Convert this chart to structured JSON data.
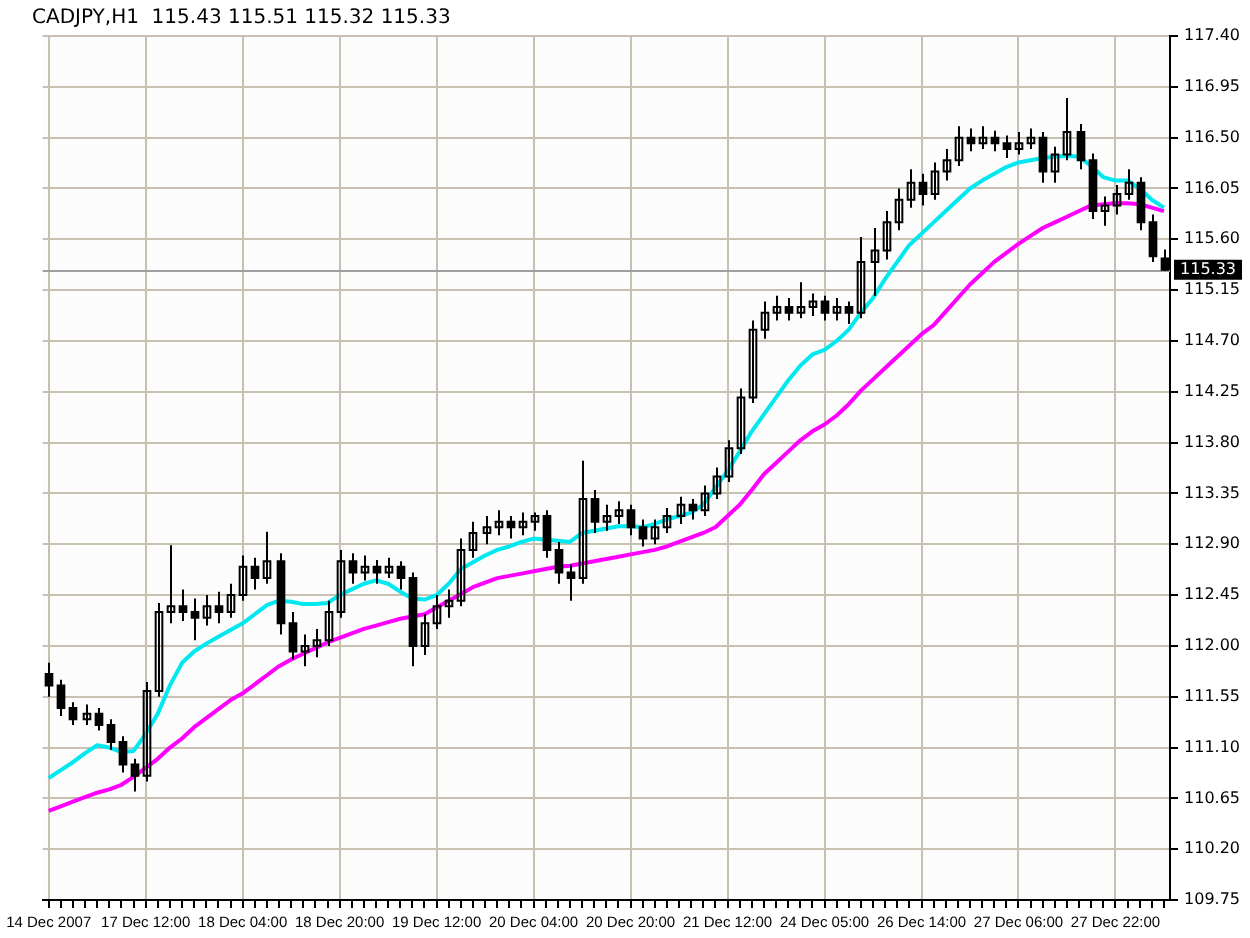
{
  "chart_data": {
    "type": "candlestick",
    "title": "CADJPY,H1  115.43 115.51 115.32 115.33",
    "color": "#000000",
    "categories": [
      "14 Dec 2007",
      null,
      null,
      null,
      null,
      null,
      null,
      null,
      "17 Dec 12:00",
      null,
      null,
      null,
      null,
      null,
      null,
      null,
      "18 Dec 04:00",
      null,
      null,
      null,
      null,
      null,
      null,
      null,
      "18 Dec 20:00",
      null,
      null,
      null,
      null,
      null,
      null,
      null,
      "19 Dec 12:00",
      null,
      null,
      null,
      null,
      null,
      null,
      null,
      "20 Dec 04:00",
      null,
      null,
      null,
      null,
      null,
      null,
      null,
      "20 Dec 20:00",
      null,
      null,
      null,
      null,
      null,
      null,
      null,
      "21 Dec 12:00",
      null,
      null,
      null,
      null,
      null,
      null,
      null,
      "24 Dec 05:00",
      null,
      null,
      null,
      null,
      null,
      null,
      null,
      "26 Dec 14:00",
      null,
      null,
      null,
      null,
      null,
      null,
      null,
      "27 Dec 06:00",
      null,
      null,
      null,
      null,
      null,
      null,
      null,
      "27 Dec 22:00",
      null,
      null,
      null,
      null
    ],
    "ohlc": [
      [
        111.75,
        111.85,
        111.55,
        111.65
      ],
      [
        111.65,
        111.7,
        111.38,
        111.45
      ],
      [
        111.45,
        111.5,
        111.3,
        111.35
      ],
      [
        111.35,
        111.48,
        111.3,
        111.4
      ],
      [
        111.4,
        111.45,
        111.25,
        111.3
      ],
      [
        111.3,
        111.35,
        111.08,
        111.15
      ],
      [
        111.15,
        111.2,
        110.88,
        110.95
      ],
      [
        110.95,
        111.0,
        110.71,
        110.85
      ],
      [
        110.85,
        111.68,
        110.8,
        111.6
      ],
      [
        111.6,
        112.38,
        111.55,
        112.3
      ],
      [
        112.3,
        112.89,
        112.2,
        112.35
      ],
      [
        112.35,
        112.5,
        112.22,
        112.3
      ],
      [
        112.3,
        112.42,
        112.05,
        112.25
      ],
      [
        112.25,
        112.45,
        112.18,
        112.35
      ],
      [
        112.35,
        112.48,
        112.2,
        112.3
      ],
      [
        112.3,
        112.55,
        112.25,
        112.45
      ],
      [
        112.45,
        112.8,
        112.4,
        112.7
      ],
      [
        112.7,
        112.78,
        112.5,
        112.6
      ],
      [
        112.6,
        113.01,
        112.55,
        112.75
      ],
      [
        112.75,
        112.82,
        112.1,
        112.2
      ],
      [
        112.2,
        112.3,
        111.88,
        111.95
      ],
      [
        111.95,
        112.1,
        111.82,
        112.0
      ],
      [
        112.0,
        112.15,
        111.9,
        112.05
      ],
      [
        112.05,
        112.4,
        112.0,
        112.3
      ],
      [
        112.3,
        112.85,
        112.25,
        112.75
      ],
      [
        112.75,
        112.82,
        112.55,
        112.65
      ],
      [
        112.65,
        112.8,
        112.58,
        112.7
      ],
      [
        112.7,
        112.76,
        112.55,
        112.65
      ],
      [
        112.65,
        112.78,
        112.6,
        112.7
      ],
      [
        112.7,
        112.75,
        112.5,
        112.6
      ],
      [
        112.6,
        112.65,
        111.82,
        112.0
      ],
      [
        112.0,
        112.28,
        111.92,
        112.2
      ],
      [
        112.2,
        112.45,
        112.15,
        112.35
      ],
      [
        112.35,
        112.5,
        112.25,
        112.4
      ],
      [
        112.4,
        112.95,
        112.35,
        112.85
      ],
      [
        112.85,
        113.1,
        112.78,
        113.0
      ],
      [
        113.0,
        113.15,
        112.9,
        113.05
      ],
      [
        113.05,
        113.2,
        112.98,
        113.1
      ],
      [
        113.1,
        113.15,
        112.95,
        113.05
      ],
      [
        113.05,
        113.18,
        112.98,
        113.1
      ],
      [
        113.1,
        113.18,
        113.02,
        113.15
      ],
      [
        113.15,
        113.2,
        112.78,
        112.85
      ],
      [
        112.85,
        112.92,
        112.55,
        112.65
      ],
      [
        112.65,
        112.72,
        112.4,
        112.6
      ],
      [
        112.6,
        113.64,
        112.55,
        113.3
      ],
      [
        113.3,
        113.38,
        113.0,
        113.1
      ],
      [
        113.1,
        113.25,
        113.02,
        113.15
      ],
      [
        113.15,
        113.28,
        113.08,
        113.2
      ],
      [
        113.2,
        113.25,
        112.98,
        113.05
      ],
      [
        113.05,
        113.12,
        112.88,
        112.95
      ],
      [
        112.95,
        113.12,
        112.9,
        113.05
      ],
      [
        113.05,
        113.22,
        113.0,
        113.15
      ],
      [
        113.15,
        113.32,
        113.08,
        113.25
      ],
      [
        113.25,
        113.3,
        113.12,
        113.2
      ],
      [
        113.2,
        113.42,
        113.15,
        113.35
      ],
      [
        113.35,
        113.58,
        113.3,
        113.5
      ],
      [
        113.5,
        113.82,
        113.45,
        113.75
      ],
      [
        113.75,
        114.28,
        113.7,
        114.2
      ],
      [
        114.2,
        114.88,
        114.15,
        114.8
      ],
      [
        114.8,
        115.05,
        114.72,
        114.95
      ],
      [
        114.95,
        115.1,
        114.88,
        115.0
      ],
      [
        115.0,
        115.08,
        114.88,
        114.95
      ],
      [
        114.95,
        115.22,
        114.9,
        115.0
      ],
      [
        115.0,
        115.12,
        114.92,
        115.05
      ],
      [
        115.05,
        115.1,
        114.88,
        114.95
      ],
      [
        114.95,
        115.08,
        114.88,
        115.0
      ],
      [
        115.0,
        115.05,
        114.85,
        114.95
      ],
      [
        114.95,
        115.62,
        114.9,
        115.4
      ],
      [
        115.4,
        115.7,
        115.1,
        115.5
      ],
      [
        115.5,
        115.85,
        115.42,
        115.75
      ],
      [
        115.75,
        116.05,
        115.68,
        115.95
      ],
      [
        115.95,
        116.22,
        115.88,
        116.1
      ],
      [
        116.1,
        116.18,
        115.9,
        116.0
      ],
      [
        116.0,
        116.28,
        115.95,
        116.2
      ],
      [
        116.2,
        116.4,
        116.12,
        116.3
      ],
      [
        116.3,
        116.6,
        116.25,
        116.5
      ],
      [
        116.5,
        116.58,
        116.38,
        116.45
      ],
      [
        116.45,
        116.6,
        116.4,
        116.5
      ],
      [
        116.5,
        116.56,
        116.38,
        116.45
      ],
      [
        116.45,
        116.52,
        116.32,
        116.4
      ],
      [
        116.4,
        116.55,
        116.35,
        116.45
      ],
      [
        116.45,
        116.58,
        116.4,
        116.5
      ],
      [
        116.5,
        116.55,
        116.1,
        116.2
      ],
      [
        116.2,
        116.42,
        116.1,
        116.35
      ],
      [
        116.35,
        116.85,
        116.3,
        116.55
      ],
      [
        116.55,
        116.62,
        116.22,
        116.3
      ],
      [
        116.3,
        116.36,
        115.78,
        115.85
      ],
      [
        115.85,
        115.98,
        115.72,
        115.9
      ],
      [
        115.9,
        116.08,
        115.82,
        116.0
      ],
      [
        116.0,
        116.22,
        115.95,
        116.1
      ],
      [
        116.1,
        116.15,
        115.68,
        115.75
      ],
      [
        115.75,
        115.82,
        115.4,
        115.45
      ],
      [
        115.43,
        115.51,
        115.32,
        115.33
      ]
    ],
    "series": [
      {
        "type": "line",
        "color": "#00e8f0",
        "values": [
          110.83,
          110.9,
          110.97,
          111.05,
          111.12,
          111.1,
          111.06,
          111.07,
          111.22,
          111.4,
          111.65,
          111.85,
          111.95,
          112.02,
          112.08,
          112.14,
          112.2,
          112.28,
          112.36,
          112.4,
          112.39,
          112.37,
          112.37,
          112.38,
          112.45,
          112.5,
          112.55,
          112.58,
          112.55,
          112.48,
          112.42,
          112.41,
          112.45,
          112.55,
          112.68,
          112.74,
          112.8,
          112.85,
          112.88,
          112.92,
          112.95,
          112.94,
          112.93,
          112.92,
          113.0,
          113.02,
          113.04,
          113.06,
          113.06,
          113.05,
          113.08,
          113.12,
          113.15,
          113.18,
          113.25,
          113.4,
          113.55,
          113.72,
          113.9,
          114.05,
          114.2,
          114.35,
          114.48,
          114.58,
          114.62,
          114.7,
          114.8,
          114.95,
          115.08,
          115.25,
          115.4,
          115.55,
          115.65,
          115.75,
          115.85,
          115.95,
          116.05,
          116.12,
          116.18,
          116.24,
          116.28,
          116.3,
          116.32,
          116.33,
          116.34,
          116.33,
          116.25,
          116.15,
          116.12,
          116.12,
          116.05,
          115.95,
          115.88
        ]
      },
      {
        "type": "line",
        "color": "#ff00ff",
        "values": [
          110.54,
          110.58,
          110.62,
          110.66,
          110.7,
          110.73,
          110.77,
          110.84,
          110.92,
          111.0,
          111.1,
          111.18,
          111.28,
          111.36,
          111.44,
          111.52,
          111.58,
          111.66,
          111.74,
          111.82,
          111.88,
          111.93,
          111.98,
          112.03,
          112.07,
          112.11,
          112.15,
          112.18,
          112.21,
          112.24,
          112.26,
          112.28,
          112.34,
          112.4,
          112.46,
          112.52,
          112.56,
          112.6,
          112.62,
          112.64,
          112.66,
          112.68,
          112.7,
          112.71,
          112.73,
          112.75,
          112.77,
          112.79,
          112.81,
          112.83,
          112.85,
          112.88,
          112.92,
          112.96,
          113.0,
          113.05,
          113.15,
          113.25,
          113.38,
          113.52,
          113.62,
          113.72,
          113.82,
          113.9,
          113.96,
          114.04,
          114.14,
          114.26,
          114.36,
          114.46,
          114.56,
          114.66,
          114.76,
          114.84,
          114.96,
          115.08,
          115.2,
          115.3,
          115.4,
          115.48,
          115.56,
          115.63,
          115.7,
          115.75,
          115.8,
          115.85,
          115.9,
          115.91,
          115.92,
          115.92,
          115.91,
          115.88,
          115.85
        ]
      }
    ],
    "ylim": [
      109.75,
      117.4
    ],
    "yticks": [
      {
        "value": 109.75,
        "label": "109.75"
      },
      {
        "value": 110.2,
        "label": "110.20"
      },
      {
        "value": 110.65,
        "label": "110.65"
      },
      {
        "value": 111.1,
        "label": "111.10"
      },
      {
        "value": 111.55,
        "label": "111.55"
      },
      {
        "value": 112,
        "label": "112.00"
      },
      {
        "value": 112.45,
        "label": "112.45"
      },
      {
        "value": 112.9,
        "label": "112.90"
      },
      {
        "value": 113.35,
        "label": "113.35"
      },
      {
        "value": 113.8,
        "label": "113.80"
      },
      {
        "value": 114.25,
        "label": "114.25"
      },
      {
        "value": 114.7,
        "label": "114.70"
      },
      {
        "value": 115.15,
        "label": "115.15"
      },
      {
        "value": 115.6,
        "label": "115.60"
      },
      {
        "value": 116.05,
        "label": "116.05"
      },
      {
        "value": 116.5,
        "label": "116.50"
      },
      {
        "value": 116.95,
        "label": "116.95"
      },
      {
        "value": 117.4,
        "label": "117.40"
      }
    ],
    "ref_lines": [
      {
        "axis": "y",
        "value": 115.33,
        "label": "115.33",
        "color": "#a0a0a0"
      }
    ],
    "grid": true
  }
}
